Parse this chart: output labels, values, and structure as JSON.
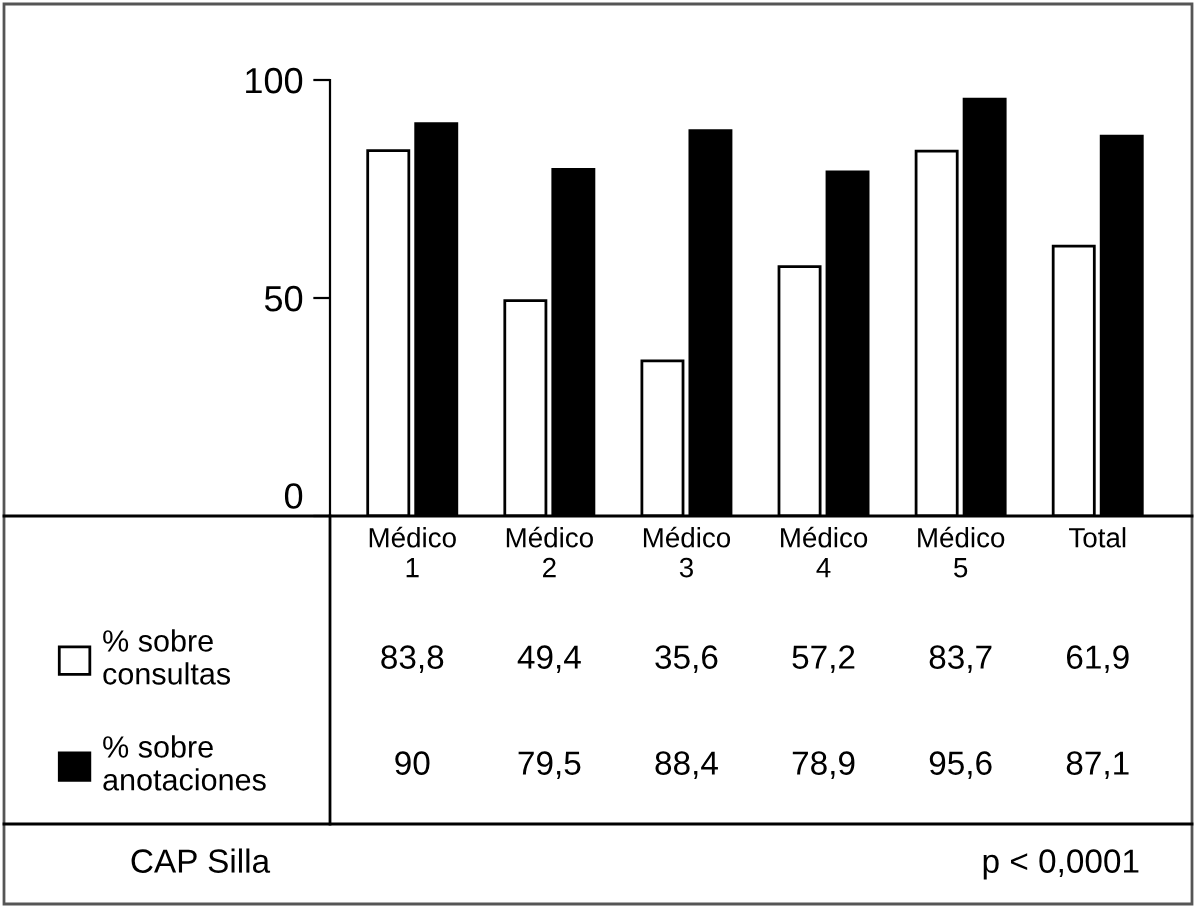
{
  "chart_data": {
    "type": "bar",
    "categories": [
      "Médico\n1",
      "Médico\n2",
      "Médico\n3",
      "Médico\n4",
      "Médico\n5",
      "Total"
    ],
    "series": [
      {
        "name": "% sobre\nconsultas",
        "color": "#ffffff",
        "values": [
          83.8,
          49.4,
          35.6,
          57.2,
          83.7,
          61.9
        ],
        "value_labels": [
          "83,8",
          "49,4",
          "35,6",
          "57,2",
          "83,7",
          "61,9"
        ]
      },
      {
        "name": "% sobre\nanotaciones",
        "color": "#000000",
        "values": [
          90,
          79.5,
          88.4,
          78.9,
          95.6,
          87.1
        ],
        "value_labels": [
          "90",
          "79,5",
          "88,4",
          "78,9",
          "95,6",
          "87,1"
        ]
      }
    ],
    "ylim": [
      0,
      100
    ],
    "yticks": [
      0,
      50,
      100
    ],
    "grid": false,
    "legend": "bottom",
    "annotations": [
      "CAP Silla",
      "p < 0,0001"
    ]
  }
}
